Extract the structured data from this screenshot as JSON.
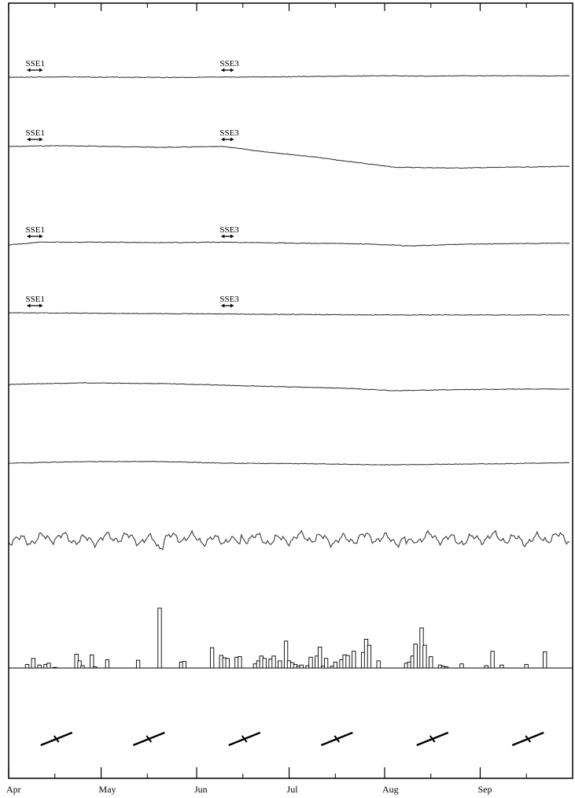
{
  "chart_data": {
    "type": "line",
    "x_axis": {
      "tick_labels": [
        "Apr",
        "May",
        "Jun",
        "Jul",
        "Aug",
        "Sep"
      ],
      "range": [
        "Apr 1",
        "Sep 30"
      ]
    },
    "annotations": [
      {
        "text": "SSE1",
        "panel": 0,
        "start_day": 6,
        "end_day": 11
      },
      {
        "text": "SSE3",
        "panel": 0,
        "start_day": 69,
        "end_day": 73
      },
      {
        "text": "SSE1",
        "panel": 1,
        "start_day": 6,
        "end_day": 11
      },
      {
        "text": "SSE3",
        "panel": 1,
        "start_day": 69,
        "end_day": 73
      },
      {
        "text": "SSE1",
        "panel": 2,
        "start_day": 6,
        "end_day": 11
      },
      {
        "text": "SSE3",
        "panel": 2,
        "start_day": 69,
        "end_day": 73
      },
      {
        "text": "SSE1",
        "panel": 3,
        "start_day": 6,
        "end_day": 11
      },
      {
        "text": "SSE3",
        "panel": 3,
        "start_day": 69,
        "end_day": 73
      }
    ],
    "series": [
      {
        "type": "line",
        "x_days": [
          0,
          20,
          50,
          70,
          90,
          110,
          125,
          135,
          150,
          182
        ],
        "values": [
          0.0,
          0.1,
          -0.1,
          0.0,
          0.2,
          0.4,
          0.6,
          0.4,
          0.6,
          0.5
        ]
      },
      {
        "type": "line",
        "x_days": [
          0,
          15,
          35,
          50,
          70,
          80,
          100,
          110,
          125,
          145,
          182
        ],
        "values": [
          0.0,
          0.1,
          0.0,
          -0.1,
          0.0,
          -0.5,
          -1.3,
          -1.8,
          -2.5,
          -2.6,
          -2.4
        ]
      },
      {
        "type": "line",
        "x_days": [
          0,
          10,
          30,
          50,
          70,
          90,
          110,
          125,
          130,
          150,
          182
        ],
        "values": [
          0.0,
          0.6,
          0.6,
          0.5,
          0.6,
          0.4,
          0.3,
          0.0,
          -0.2,
          0.2,
          0.4
        ]
      },
      {
        "type": "line",
        "x_days": [
          0,
          30,
          60,
          90,
          120,
          150,
          182
        ],
        "values": [
          0.0,
          -0.1,
          -0.2,
          -0.3,
          -0.4,
          -0.4,
          -0.4
        ]
      },
      {
        "type": "line",
        "x_days": [
          0,
          25,
          50,
          70,
          90,
          110,
          125,
          140,
          160,
          182
        ],
        "values": [
          0.0,
          0.2,
          0.1,
          -0.1,
          -0.3,
          -0.5,
          -0.8,
          -0.7,
          -0.6,
          -0.6
        ]
      },
      {
        "type": "line",
        "x_days": [
          0,
          25,
          50,
          70,
          100,
          120,
          140,
          160,
          182
        ],
        "values": [
          0.0,
          0.3,
          0.3,
          0.0,
          -0.1,
          -0.3,
          -0.2,
          -0.1,
          0.1
        ]
      },
      {
        "type": "line",
        "x_days": [
          0,
          182
        ],
        "values": [
          0.0,
          0.0
        ]
      },
      {
        "type": "bar",
        "x_days": [
          6,
          8,
          10,
          12,
          13,
          15,
          22,
          23,
          24,
          27,
          28,
          32,
          42,
          49,
          56,
          57,
          66,
          69,
          70,
          71,
          74,
          75,
          80,
          81,
          82,
          83,
          85,
          86,
          88,
          90,
          91,
          92,
          93,
          94,
          95,
          97,
          98,
          100,
          101,
          102,
          103,
          105,
          106,
          108,
          109,
          110,
          112,
          115,
          116,
          117,
          120,
          129,
          130,
          131,
          132,
          134,
          135,
          137,
          140,
          141,
          142,
          147,
          155,
          157,
          160,
          168,
          174
        ],
        "values": [
          0.6,
          1.6,
          0.5,
          0.6,
          0.8,
          0.1,
          2.3,
          1.2,
          0.4,
          2.2,
          0.2,
          1.4,
          1.3,
          10.0,
          1.0,
          1.1,
          3.4,
          2.1,
          1.7,
          1.6,
          1.8,
          1.9,
          0.7,
          1.2,
          2.0,
          1.6,
          1.5,
          2.0,
          1.2,
          4.5,
          1.2,
          0.9,
          0.6,
          0.3,
          0.5,
          0.4,
          1.8,
          2.0,
          3.5,
          0.3,
          1.6,
          0.3,
          1.0,
          1.4,
          2.2,
          2.1,
          2.8,
          2.6,
          4.8,
          3.8,
          1.2,
          0.8,
          1.0,
          2.0,
          4.0,
          6.7,
          3.8,
          1.9,
          0.5,
          0.3,
          0.2,
          0.7,
          0.4,
          2.8,
          0.5,
          0.6,
          2.7
        ]
      }
    ]
  }
}
